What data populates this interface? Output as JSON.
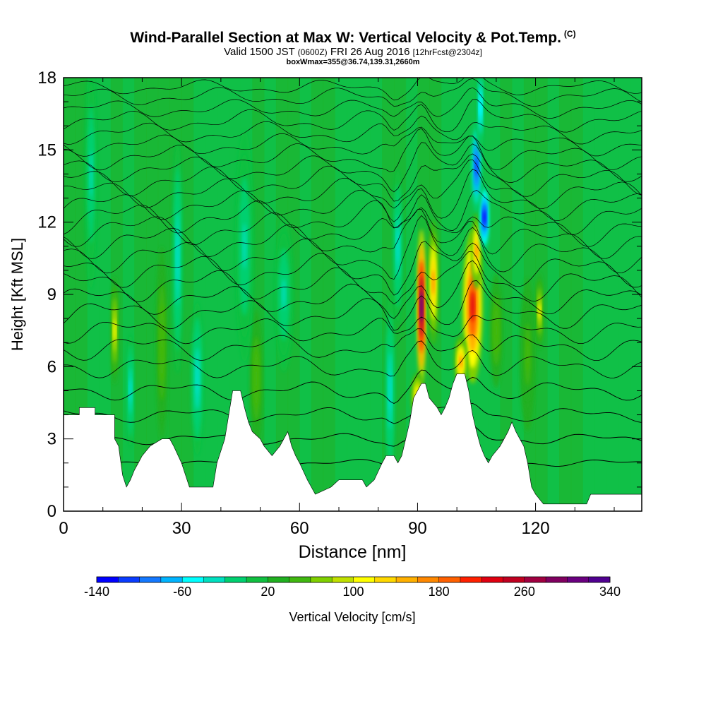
{
  "header": {
    "title": "Wind-Parallel Section at Max W: Vertical Velocity & Pot.Temp.",
    "title_tag": "(C)",
    "valid_prefix": "Valid 1500 JST",
    "valid_utc": "(0600Z)",
    "valid_date": "FRI 26 Aug 2016",
    "forecast_tag": "[12hrFcst@2304z]",
    "box_info": "boxWmax=355@36.74,139.31,2660m"
  },
  "chart_data": {
    "type": "heatmap",
    "xlabel": "Distance [nm]",
    "ylabel": "Height [Kft MSL]",
    "xlim": [
      0,
      147
    ],
    "ylim": [
      0,
      18
    ],
    "x_ticks": [
      0,
      30,
      60,
      90,
      120
    ],
    "y_ticks": [
      0,
      3,
      6,
      9,
      12,
      15,
      18
    ],
    "colorbar": {
      "label": "Vertical Velocity [cm/s]",
      "tick_labels": [
        -140,
        -60,
        20,
        100,
        180,
        260,
        340
      ],
      "colors": [
        "#0000ff",
        "#0a3cff",
        "#1478ff",
        "#00b4ff",
        "#00ffff",
        "#00e0c0",
        "#00d070",
        "#10c040",
        "#20b020",
        "#40b810",
        "#80d000",
        "#c0e000",
        "#ffff00",
        "#ffd800",
        "#ffb000",
        "#ff8800",
        "#ff6000",
        "#ff2000",
        "#e00010",
        "#c00020",
        "#a00040",
        "#800060",
        "#6a0080",
        "#500090"
      ]
    },
    "terrain": [
      [
        0,
        4.0
      ],
      [
        4,
        4.0
      ],
      [
        4,
        4.3
      ],
      [
        8,
        4.3
      ],
      [
        8,
        4.0
      ],
      [
        13,
        4.0
      ],
      [
        13,
        3.0
      ],
      [
        14,
        2.7
      ],
      [
        15,
        1.5
      ],
      [
        16,
        1.0
      ],
      [
        17,
        1.3
      ],
      [
        18,
        1.7
      ],
      [
        19,
        2.0
      ],
      [
        20,
        2.3
      ],
      [
        22,
        2.7
      ],
      [
        25,
        3.0
      ],
      [
        27,
        3.0
      ],
      [
        28,
        2.7
      ],
      [
        30,
        2.0
      ],
      [
        31,
        1.5
      ],
      [
        32,
        1.0
      ],
      [
        38,
        1.0
      ],
      [
        39,
        2.0
      ],
      [
        41,
        3.0
      ],
      [
        42,
        4.0
      ],
      [
        43,
        5.0
      ],
      [
        45,
        5.0
      ],
      [
        46,
        4.3
      ],
      [
        47,
        3.7
      ],
      [
        48,
        3.3
      ],
      [
        50,
        3.0
      ],
      [
        51,
        2.7
      ],
      [
        53,
        2.3
      ],
      [
        55,
        2.7
      ],
      [
        56,
        3.0
      ],
      [
        57,
        3.3
      ],
      [
        58,
        2.7
      ],
      [
        59,
        2.3
      ],
      [
        60,
        2.0
      ],
      [
        62,
        1.3
      ],
      [
        63,
        1.0
      ],
      [
        64,
        0.7
      ],
      [
        68,
        1.0
      ],
      [
        70,
        1.3
      ],
      [
        76,
        1.3
      ],
      [
        77,
        1.0
      ],
      [
        79,
        1.3
      ],
      [
        81,
        2.0
      ],
      [
        82,
        2.3
      ],
      [
        84,
        2.3
      ],
      [
        85,
        2.0
      ],
      [
        86,
        2.3
      ],
      [
        87,
        3.0
      ],
      [
        88,
        3.7
      ],
      [
        89,
        4.7
      ],
      [
        90,
        5.0
      ],
      [
        91,
        5.3
      ],
      [
        92,
        5.3
      ],
      [
        93,
        4.7
      ],
      [
        95,
        4.3
      ],
      [
        96,
        4.0
      ],
      [
        97,
        4.3
      ],
      [
        98,
        4.7
      ],
      [
        99,
        5.3
      ],
      [
        100,
        5.7
      ],
      [
        102,
        5.7
      ],
      [
        103,
        5.0
      ],
      [
        104,
        4.0
      ],
      [
        105,
        3.3
      ],
      [
        106,
        2.7
      ],
      [
        107,
        2.3
      ],
      [
        108,
        2.0
      ],
      [
        109,
        2.3
      ],
      [
        111,
        2.7
      ],
      [
        112,
        3.0
      ],
      [
        113,
        3.3
      ],
      [
        114,
        3.7
      ],
      [
        115,
        3.3
      ],
      [
        116,
        3.0
      ],
      [
        117,
        2.7
      ],
      [
        118,
        2.0
      ],
      [
        119,
        1.0
      ],
      [
        120,
        0.7
      ],
      [
        121,
        0.5
      ],
      [
        122,
        0.3
      ],
      [
        133,
        0.3
      ],
      [
        134,
        0.7
      ],
      [
        147,
        0.7
      ]
    ],
    "updrafts": [
      {
        "x": 91,
        "y": 8.5,
        "sx": 0.7,
        "sy": 2.0,
        "w": 340
      },
      {
        "x": 104,
        "y": 8.5,
        "sx": 1.6,
        "sy": 2.0,
        "w": 230
      },
      {
        "x": 94,
        "y": 9.5,
        "sx": 0.8,
        "sy": 1.6,
        "w": 160
      },
      {
        "x": 105,
        "y": 10.8,
        "sx": 0.8,
        "sy": 1.0,
        "w": 160
      },
      {
        "x": 13,
        "y": 7.5,
        "sx": 0.6,
        "sy": 1.4,
        "w": 110
      },
      {
        "x": 121,
        "y": 8.3,
        "sx": 0.6,
        "sy": 1.0,
        "w": 100
      },
      {
        "x": 25,
        "y": 7.0,
        "sx": 0.9,
        "sy": 2.5,
        "w": 55
      },
      {
        "x": 49,
        "y": 5.5,
        "sx": 1.0,
        "sy": 1.8,
        "w": 55
      },
      {
        "x": 110,
        "y": 7.5,
        "sx": 1.0,
        "sy": 1.5,
        "w": 55
      },
      {
        "x": 118,
        "y": 6.5,
        "sx": 1.2,
        "sy": 2.0,
        "w": 50
      },
      {
        "x": 90,
        "y": 4.8,
        "sx": 1.0,
        "sy": 0.6,
        "w": 120
      },
      {
        "x": 101,
        "y": 6.2,
        "sx": 1.0,
        "sy": 0.7,
        "w": 160
      }
    ],
    "downdrafts": [
      {
        "x": 107,
        "y": 12.2,
        "sx": 0.8,
        "sy": 0.9,
        "w": -140
      },
      {
        "x": 105,
        "y": 14.3,
        "sx": 0.8,
        "sy": 1.2,
        "w": -120
      },
      {
        "x": 106,
        "y": 16.8,
        "sx": 0.6,
        "sy": 1.2,
        "w": -60
      },
      {
        "x": 85,
        "y": 11.0,
        "sx": 0.8,
        "sy": 2.0,
        "w": -40
      },
      {
        "x": 83,
        "y": 5.0,
        "sx": 0.8,
        "sy": 2.5,
        "w": -40
      },
      {
        "x": 29,
        "y": 10.5,
        "sx": 0.8,
        "sy": 3.0,
        "w": -40
      },
      {
        "x": 46,
        "y": 11.0,
        "sx": 1.5,
        "sy": 3.0,
        "w": -30
      },
      {
        "x": 34,
        "y": 5.5,
        "sx": 1.0,
        "sy": 2.0,
        "w": -35
      },
      {
        "x": 56,
        "y": 9.0,
        "sx": 1.5,
        "sy": 2.0,
        "w": -25
      },
      {
        "x": 7,
        "y": 14.0,
        "sx": 1.0,
        "sy": 3.0,
        "w": -25
      },
      {
        "x": 17,
        "y": 5.0,
        "sx": 0.6,
        "sy": 1.5,
        "w": -35
      }
    ],
    "isentropes": [
      {
        "base": 2.0,
        "c": 0.1,
        "r": 1
      },
      {
        "base": 3.0,
        "c": 0.15,
        "r": 1
      },
      {
        "base": 4.0,
        "c": 0.2,
        "r": 0.9
      },
      {
        "base": 5.0,
        "c": 0.25,
        "r": 0.9
      },
      {
        "base": 6.0,
        "c": 0.3,
        "r": 0.8
      },
      {
        "base": 6.8,
        "c": 0.35,
        "r": 0.8
      },
      {
        "base": 7.5,
        "c": 0.35,
        "r": 0.8
      },
      {
        "base": 8.2,
        "c": 0.4,
        "r": 0.8
      },
      {
        "base": 8.8,
        "c": 0.4,
        "r": 0.8
      },
      {
        "base": 9.4,
        "c": 0.45,
        "r": 0.75
      },
      {
        "base": 10.0,
        "c": 0.45,
        "r": 0.75
      },
      {
        "base": 10.6,
        "c": 0.45,
        "r": 0.7
      },
      {
        "base": 11.2,
        "c": 0.45,
        "r": 0.7
      },
      {
        "base": 11.7,
        "c": 0.45,
        "r": 0.7
      },
      {
        "base": 12.2,
        "c": 0.45,
        "r": 0.7
      },
      {
        "base": 12.7,
        "c": 0.4,
        "r": 0.7
      },
      {
        "base": 13.2,
        "c": 0.4,
        "r": 0.7
      },
      {
        "base": 13.7,
        "c": 0.4,
        "r": 0.7
      },
      {
        "base": 14.2,
        "c": 0.35,
        "r": 0.7
      },
      {
        "base": 14.7,
        "c": 0.35,
        "r": 0.7
      },
      {
        "base": 15.2,
        "c": 0.3,
        "r": 0.7
      },
      {
        "base": 15.7,
        "c": 0.3,
        "r": 0.7
      },
      {
        "base": 16.2,
        "c": 0.3,
        "r": 0.7
      },
      {
        "base": 16.7,
        "c": 0.25,
        "r": 0.7
      },
      {
        "base": 17.2,
        "c": 0.25,
        "r": 0.7
      },
      {
        "base": 17.6,
        "c": 0.2,
        "r": 0.7
      }
    ]
  }
}
